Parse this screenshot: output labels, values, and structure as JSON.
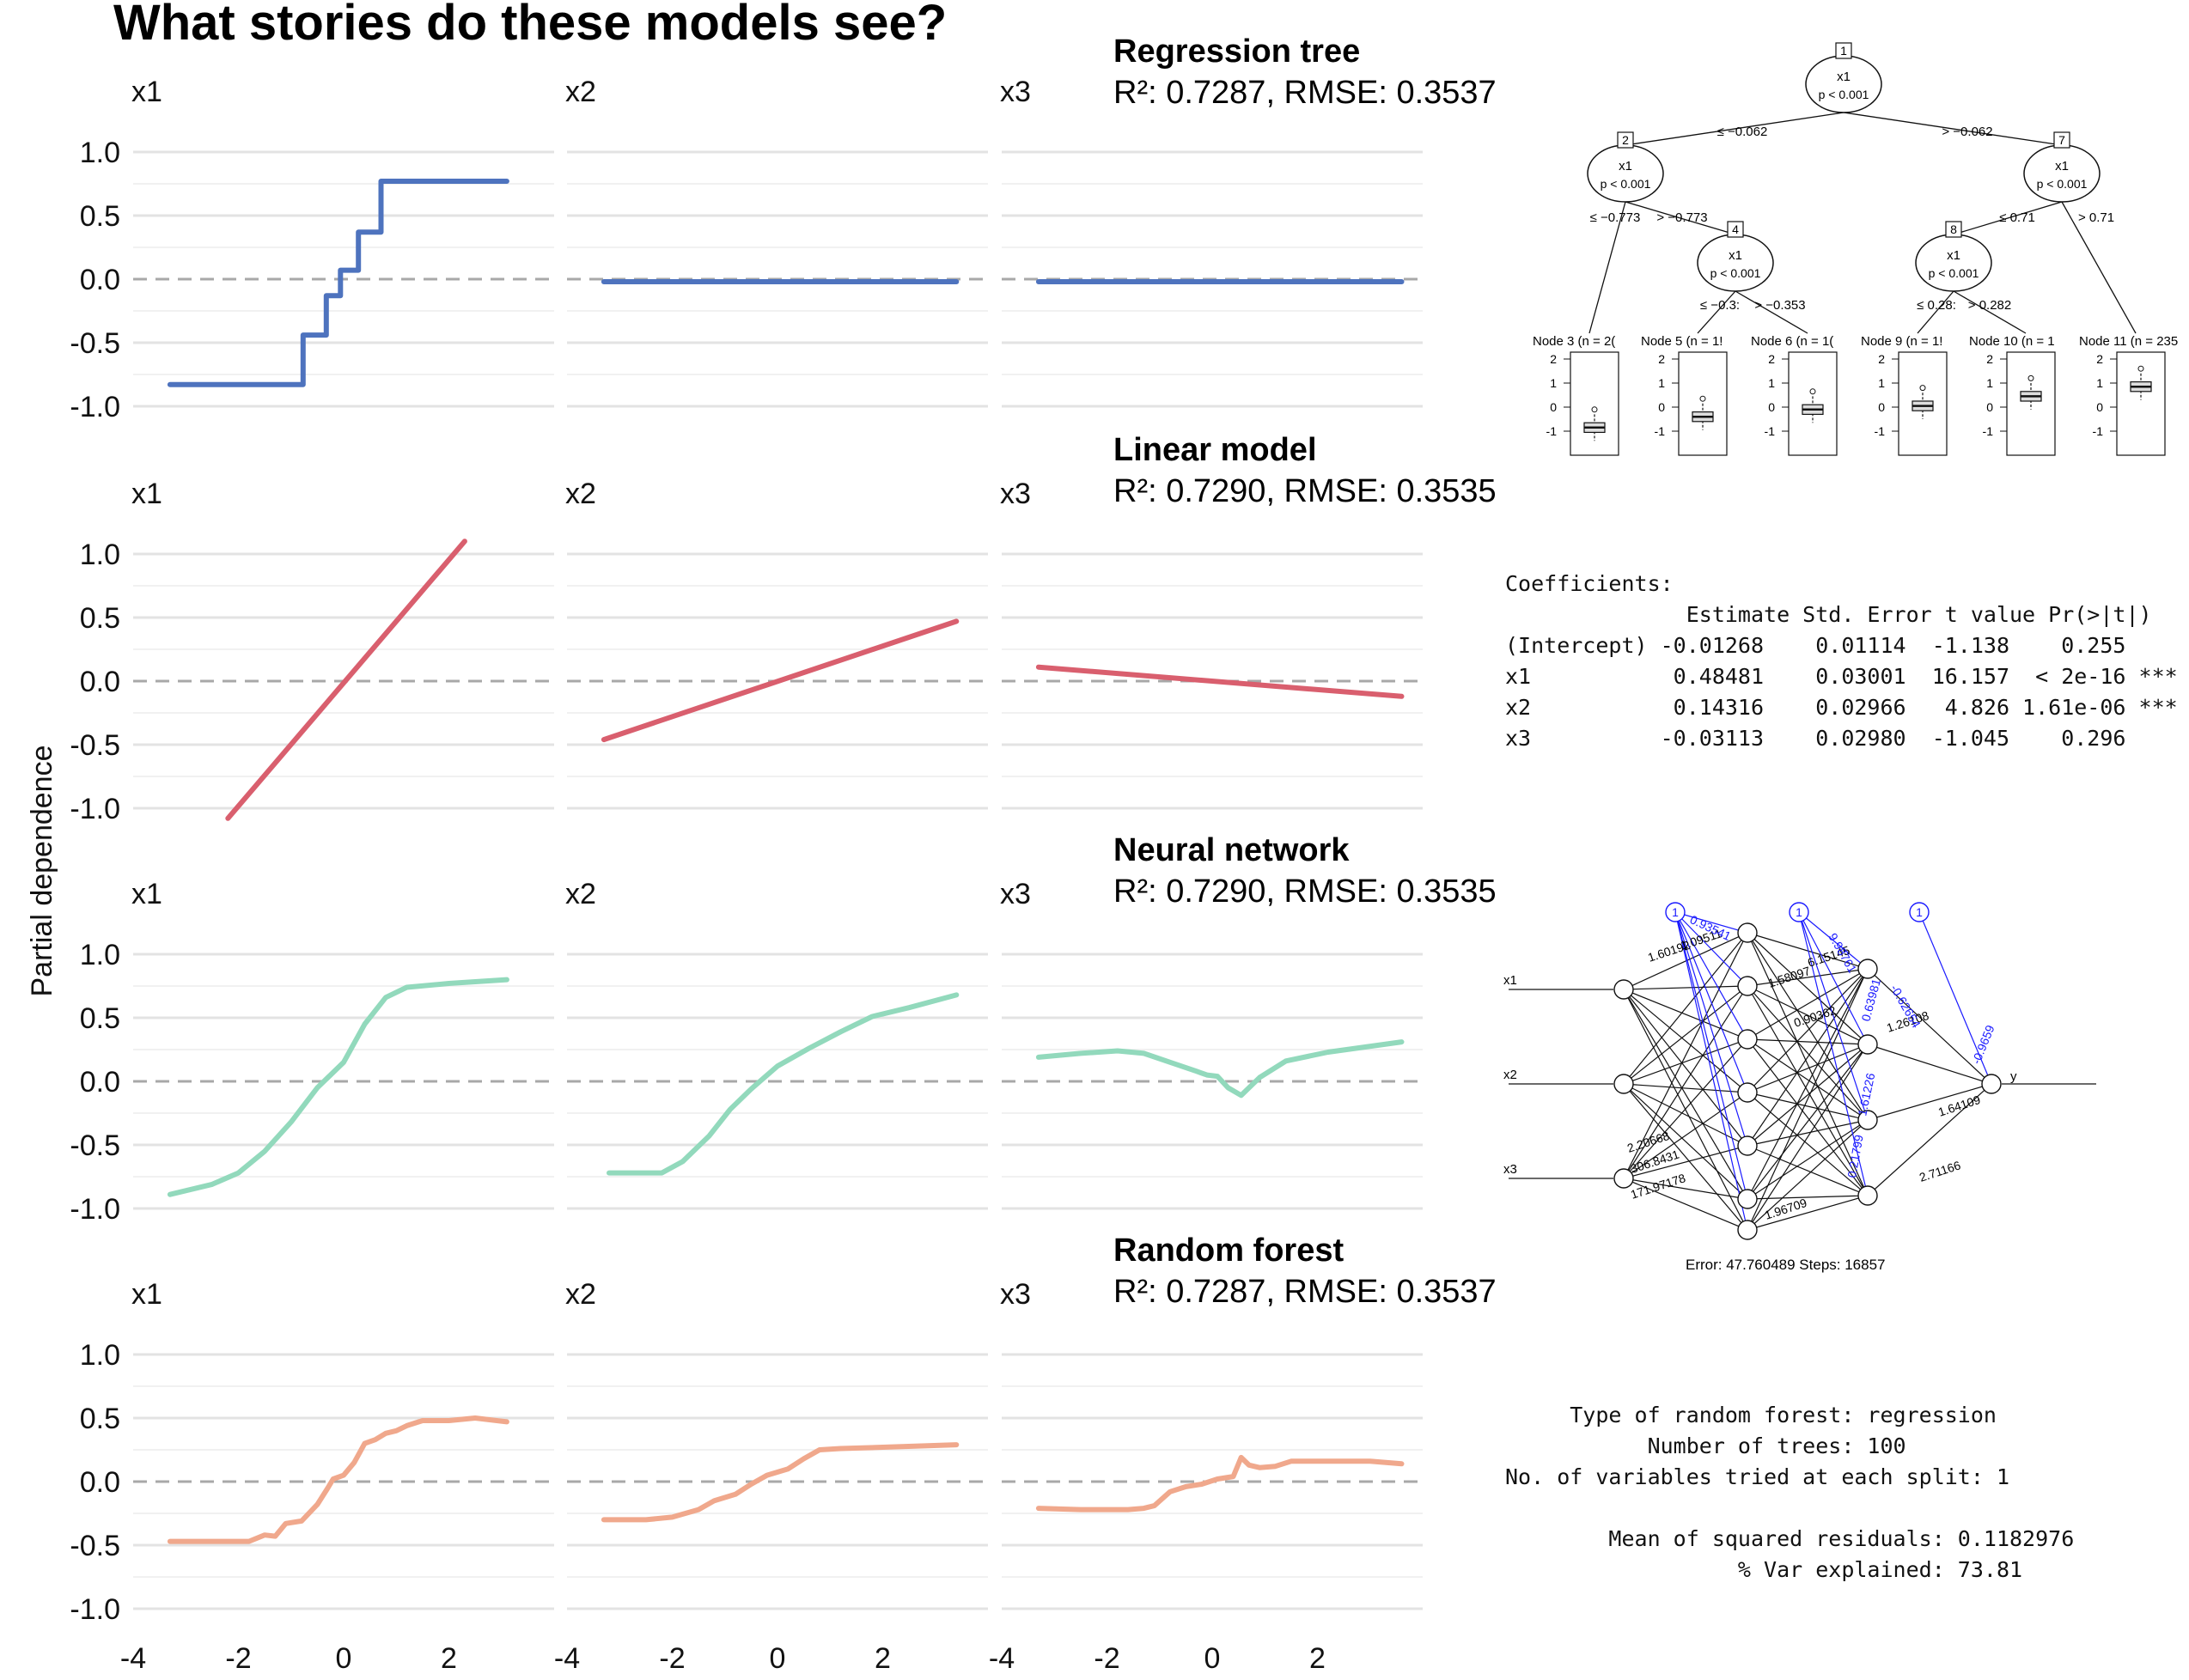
{
  "title": "What stories do these models see?",
  "y_axis_label": "Partial dependence",
  "colors": {
    "Regression tree": "#4e73be",
    "Linear model": "#d95f6e",
    "Neural network": "#92d9bc",
    "Random forest": "#f0a88c"
  },
  "chart_data": {
    "type": "line",
    "xlim": [
      -4,
      4
    ],
    "ylim": [
      -1.25,
      1.25
    ],
    "x_ticks": [
      "-4",
      "-2",
      "0",
      "2"
    ],
    "y_ticks": [
      "1.0",
      "0.5",
      "0.0",
      "-0.5",
      "-1.0"
    ],
    "panels": [
      "x1",
      "x2",
      "x3"
    ],
    "models": [
      {
        "name": "Regression tree",
        "metrics": "R²: 0.7287, RMSE: 0.3537",
        "series": [
          {
            "panel": "x1",
            "points": [
              [
                -3.3,
                -0.83
              ],
              [
                -0.77,
                -0.83
              ],
              [
                -0.77,
                -0.44
              ],
              [
                -0.33,
                -0.44
              ],
              [
                -0.33,
                -0.13
              ],
              [
                -0.06,
                -0.13
              ],
              [
                -0.06,
                0.07
              ],
              [
                0.28,
                0.07
              ],
              [
                0.28,
                0.37
              ],
              [
                0.71,
                0.37
              ],
              [
                0.71,
                0.77
              ],
              [
                3.1,
                0.77
              ]
            ]
          },
          {
            "panel": "x2",
            "points": [
              [
                -3.3,
                -0.02
              ],
              [
                3.4,
                -0.02
              ]
            ]
          },
          {
            "panel": "x3",
            "points": [
              [
                -3.3,
                -0.02
              ],
              [
                3.6,
                -0.02
              ]
            ]
          }
        ]
      },
      {
        "name": "Linear model",
        "metrics": "R²: 0.7290, RMSE: 0.3535",
        "series": [
          {
            "panel": "x1",
            "points": [
              [
                -2.2,
                -1.08
              ],
              [
                2.3,
                1.1
              ]
            ]
          },
          {
            "panel": "x2",
            "points": [
              [
                -3.3,
                -0.46
              ],
              [
                3.4,
                0.47
              ]
            ]
          },
          {
            "panel": "x3",
            "points": [
              [
                -3.3,
                0.11
              ],
              [
                3.6,
                -0.12
              ]
            ]
          }
        ]
      },
      {
        "name": "Neural network",
        "metrics": "R²: 0.7290, RMSE: 0.3535",
        "series": [
          {
            "panel": "x1",
            "points": [
              [
                -3.3,
                -0.89
              ],
              [
                -2.9,
                -0.85
              ],
              [
                -2.5,
                -0.81
              ],
              [
                -2.0,
                -0.72
              ],
              [
                -1.5,
                -0.55
              ],
              [
                -1.0,
                -0.32
              ],
              [
                -0.5,
                -0.05
              ],
              [
                0.0,
                0.15
              ],
              [
                0.4,
                0.45
              ],
              [
                0.8,
                0.66
              ],
              [
                1.2,
                0.74
              ],
              [
                2.0,
                0.77
              ],
              [
                3.1,
                0.8
              ]
            ]
          },
          {
            "panel": "x2",
            "points": [
              [
                -3.2,
                -0.72
              ],
              [
                -2.2,
                -0.72
              ],
              [
                -1.8,
                -0.63
              ],
              [
                -1.3,
                -0.43
              ],
              [
                -0.9,
                -0.22
              ],
              [
                -0.5,
                -0.06
              ],
              [
                0.0,
                0.12
              ],
              [
                0.6,
                0.26
              ],
              [
                1.2,
                0.39
              ],
              [
                1.8,
                0.51
              ],
              [
                2.5,
                0.58
              ],
              [
                3.4,
                0.68
              ]
            ]
          },
          {
            "panel": "x3",
            "points": [
              [
                -3.3,
                0.19
              ],
              [
                -2.5,
                0.22
              ],
              [
                -1.8,
                0.24
              ],
              [
                -1.3,
                0.22
              ],
              [
                -0.8,
                0.15
              ],
              [
                -0.3,
                0.08
              ],
              [
                -0.1,
                0.05
              ],
              [
                0.1,
                0.04
              ],
              [
                0.3,
                -0.05
              ],
              [
                0.55,
                -0.11
              ],
              [
                0.9,
                0.03
              ],
              [
                1.4,
                0.16
              ],
              [
                2.2,
                0.23
              ],
              [
                3.6,
                0.31
              ]
            ]
          }
        ]
      },
      {
        "name": "Random forest",
        "metrics": "R²: 0.7287, RMSE: 0.3537",
        "series": [
          {
            "panel": "x1",
            "points": [
              [
                -3.3,
                -0.47
              ],
              [
                -2.5,
                -0.47
              ],
              [
                -1.8,
                -0.47
              ],
              [
                -1.5,
                -0.42
              ],
              [
                -1.3,
                -0.43
              ],
              [
                -1.1,
                -0.33
              ],
              [
                -0.8,
                -0.31
              ],
              [
                -0.5,
                -0.18
              ],
              [
                -0.3,
                -0.05
              ],
              [
                -0.2,
                0.02
              ],
              [
                0.0,
                0.05
              ],
              [
                0.2,
                0.15
              ],
              [
                0.4,
                0.3
              ],
              [
                0.6,
                0.33
              ],
              [
                0.8,
                0.38
              ],
              [
                1.0,
                0.4
              ],
              [
                1.2,
                0.44
              ],
              [
                1.5,
                0.48
              ],
              [
                2.0,
                0.48
              ],
              [
                2.5,
                0.5
              ],
              [
                3.1,
                0.47
              ]
            ]
          },
          {
            "panel": "x2",
            "points": [
              [
                -3.3,
                -0.3
              ],
              [
                -2.5,
                -0.3
              ],
              [
                -2.0,
                -0.28
              ],
              [
                -1.5,
                -0.22
              ],
              [
                -1.2,
                -0.15
              ],
              [
                -0.8,
                -0.1
              ],
              [
                -0.5,
                -0.02
              ],
              [
                -0.2,
                0.05
              ],
              [
                0.2,
                0.1
              ],
              [
                0.5,
                0.18
              ],
              [
                0.8,
                0.25
              ],
              [
                1.2,
                0.26
              ],
              [
                2.0,
                0.27
              ],
              [
                3.4,
                0.29
              ]
            ]
          },
          {
            "panel": "x3",
            "points": [
              [
                -3.3,
                -0.21
              ],
              [
                -2.5,
                -0.22
              ],
              [
                -1.6,
                -0.22
              ],
              [
                -1.3,
                -0.21
              ],
              [
                -1.1,
                -0.19
              ],
              [
                -0.8,
                -0.08
              ],
              [
                -0.5,
                -0.04
              ],
              [
                -0.2,
                -0.02
              ],
              [
                0.1,
                0.02
              ],
              [
                0.4,
                0.04
              ],
              [
                0.55,
                0.19
              ],
              [
                0.7,
                0.13
              ],
              [
                0.9,
                0.11
              ],
              [
                1.2,
                0.12
              ],
              [
                1.5,
                0.16
              ],
              [
                2.0,
                0.16
              ],
              [
                3.0,
                0.16
              ],
              [
                3.6,
                0.14
              ]
            ]
          }
        ]
      }
    ]
  },
  "tree": {
    "nodes": [
      {
        "id": "1",
        "var": "x1",
        "p": "p < 0.001"
      },
      {
        "id": "2",
        "var": "x1",
        "p": "p < 0.001"
      },
      {
        "id": "4",
        "var": "x1",
        "p": "p < 0.001"
      },
      {
        "id": "7",
        "var": "x1",
        "p": "p < 0.001"
      },
      {
        "id": "8",
        "var": "x1",
        "p": "p < 0.001"
      }
    ],
    "edges": [
      "≤ −0.062",
      "> −0.062",
      "≤ −0.773",
      "> −0.773",
      "≤ −0.3:",
      "> −0.353",
      "≤ 0.71",
      "> 0.71",
      "≤ 0.28:",
      "> 0.282"
    ],
    "leaves": [
      "Node 3 (n = 2(",
      "Node 5 (n = 1!",
      "Node 6 (n = 1(",
      "Node 9 (n = 1!",
      "Node 10 (n = 1",
      "Node 11 (n = 235"
    ],
    "leaf_ticks": [
      "2",
      "1",
      "0",
      "-1"
    ],
    "leaf_medians": [
      -0.85,
      -0.4,
      -0.1,
      0.05,
      0.45,
      0.85
    ]
  },
  "coef_lines": [
    "Coefficients:",
    "              Estimate Std. Error t value Pr(>|t|)",
    "(Intercept) -0.01268    0.01114  -1.138    0.255",
    "x1           0.48481    0.03001  16.157  < 2e-16 ***",
    "x2           0.14316    0.02966   4.826 1.61e-06 ***",
    "x3          -0.03113    0.02980  -1.045    0.296"
  ],
  "nn": {
    "inputs": [
      "x1",
      "x2",
      "x3"
    ],
    "output": "y",
    "bias": "1",
    "weights_black": [
      "1.09511",
      "6.15145",
      "1.60192",
      "1.58097",
      "0.90362",
      "1.26108",
      "1.64109",
      "2.71166",
      "1.96709",
      "306.8431",
      "2.20668",
      "171.97178"
    ],
    "weights_blue": [
      "0.93541",
      "9.98761",
      "-0.9659",
      "-0.62654",
      "0.63981",
      "1.61226",
      "0.21799"
    ],
    "footer": "Error: 47.760489   Steps: 16857"
  },
  "rf_lines": [
    "     Type of random forest: regression",
    "           Number of trees: 100",
    "No. of variables tried at each split: 1",
    "",
    "        Mean of squared residuals: 0.1182976",
    "                  % Var explained: 73.81"
  ]
}
